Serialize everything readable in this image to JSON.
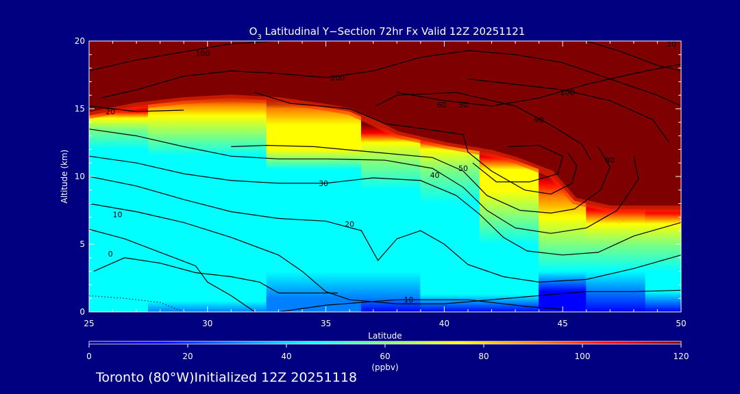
{
  "chart_data": {
    "type": "heatmap",
    "title_parts": {
      "species": "O",
      "subscript": "3",
      "rest": " Latitudinal Y−Section 72hr  Fx Valid 12Z 20251121"
    },
    "xlabel": "Latitude",
    "ylabel": "Altitude (km)",
    "xlim": [
      25,
      50
    ],
    "ylim": [
      0,
      20
    ],
    "x_ticks": [
      "25",
      "30",
      "35",
      "40",
      "45",
      "50"
    ],
    "y_ticks": [
      "0",
      "5",
      "10",
      "15",
      "20"
    ],
    "colorbar": {
      "label": "(ppbv)",
      "range": [
        0,
        120
      ],
      "ticks": [
        "0",
        "20",
        "40",
        "60",
        "80",
        "100",
        "120"
      ],
      "colormap": [
        "#00007f",
        "#0000ff",
        "#007fff",
        "#00ffff",
        "#7fff7f",
        "#ffff00",
        "#ff7f00",
        "#ff0000",
        "#7f0000"
      ]
    },
    "field_color": "#7f0000",
    "tropopause_km": [
      [
        25,
        14.5
      ],
      [
        27,
        15.2
      ],
      [
        29,
        15.6
      ],
      [
        31,
        15.8
      ],
      [
        33,
        15.6
      ],
      [
        35,
        15.1
      ],
      [
        36,
        14.8
      ],
      [
        37,
        14.0
      ],
      [
        38,
        13.1
      ],
      [
        40,
        12.3
      ],
      [
        42,
        11.7
      ],
      [
        43,
        11.2
      ],
      [
        44.5,
        10.2
      ],
      [
        45.5,
        8.2
      ],
      [
        47,
        7.6
      ],
      [
        50,
        7.6
      ]
    ],
    "field_profiles": [
      {
        "lat": 25,
        "levels": [
          [
            0,
            40
          ],
          [
            0.5,
            45
          ],
          [
            3,
            42
          ],
          [
            5,
            45
          ],
          [
            8,
            46
          ],
          [
            10,
            46
          ],
          [
            12,
            50
          ],
          [
            13.5,
            60
          ],
          [
            14.3,
            80
          ],
          [
            14.8,
            100
          ],
          [
            15.8,
            120
          ]
        ]
      },
      {
        "lat": 30,
        "levels": [
          [
            0,
            28
          ],
          [
            0.8,
            38
          ],
          [
            3,
            42
          ],
          [
            6,
            46
          ],
          [
            9,
            44
          ],
          [
            11.5,
            48
          ],
          [
            13,
            60
          ],
          [
            14.5,
            75
          ],
          [
            15.3,
            95
          ],
          [
            16,
            120
          ]
        ]
      },
      {
        "lat": 35,
        "levels": [
          [
            0,
            25
          ],
          [
            1,
            36
          ],
          [
            3,
            44
          ],
          [
            6,
            44
          ],
          [
            9,
            44
          ],
          [
            10.5,
            52
          ],
          [
            12,
            68
          ],
          [
            13.8,
            76
          ],
          [
            15,
            88
          ],
          [
            15.6,
            120
          ]
        ]
      },
      {
        "lat": 38,
        "levels": [
          [
            0,
            22
          ],
          [
            1,
            35
          ],
          [
            3,
            44
          ],
          [
            7,
            47
          ],
          [
            9,
            52
          ],
          [
            11,
            62
          ],
          [
            12.5,
            80
          ],
          [
            13.2,
            100
          ],
          [
            13.8,
            120
          ]
        ]
      },
      {
        "lat": 40,
        "levels": [
          [
            0,
            20
          ],
          [
            1.3,
            40
          ],
          [
            3,
            45
          ],
          [
            5,
            44
          ],
          [
            8,
            50
          ],
          [
            10.5,
            55
          ],
          [
            12,
            78
          ],
          [
            12.7,
            100
          ],
          [
            13.2,
            120
          ]
        ]
      },
      {
        "lat": 43,
        "levels": [
          [
            0,
            15
          ],
          [
            1.3,
            38
          ],
          [
            3,
            45
          ],
          [
            5,
            52
          ],
          [
            7,
            63
          ],
          [
            9,
            70
          ],
          [
            10.5,
            80
          ],
          [
            11.4,
            100
          ],
          [
            11.9,
            120
          ]
        ]
      },
      {
        "lat": 45,
        "levels": [
          [
            0,
            10
          ],
          [
            1.5,
            18
          ],
          [
            3,
            45
          ],
          [
            5,
            55
          ],
          [
            7,
            68
          ],
          [
            8.5,
            90
          ],
          [
            9.5,
            110
          ],
          [
            10.2,
            120
          ]
        ]
      },
      {
        "lat": 47,
        "levels": [
          [
            0,
            15
          ],
          [
            1.5,
            35
          ],
          [
            3,
            45
          ],
          [
            5,
            58
          ],
          [
            6.5,
            76
          ],
          [
            7.5,
            100
          ],
          [
            8.2,
            120
          ]
        ]
      },
      {
        "lat": 50,
        "levels": [
          [
            0,
            18
          ],
          [
            1.5,
            38
          ],
          [
            3,
            50
          ],
          [
            5,
            62
          ],
          [
            6.5,
            80
          ],
          [
            7.3,
            105
          ],
          [
            8,
            120
          ]
        ]
      }
    ],
    "contours": [
      {
        "label": "0",
        "label_at": [
          25.9,
          4.3
        ],
        "points": [
          [
            25,
            6.1
          ],
          [
            26.5,
            5.4
          ],
          [
            28,
            4.4
          ],
          [
            29.5,
            3.4
          ],
          [
            30,
            2.2
          ],
          [
            31,
            1.2
          ],
          [
            32,
            0
          ]
        ]
      },
      {
        "label": "10",
        "label_at": [
          26.2,
          7.2
        ],
        "points": [
          [
            25,
            8.0
          ],
          [
            27,
            7.4
          ],
          [
            29,
            6.6
          ],
          [
            31,
            5.5
          ],
          [
            33,
            4.2
          ],
          [
            34,
            3.0
          ],
          [
            35,
            1.5
          ],
          [
            36,
            0.9
          ],
          [
            38,
            0.6
          ],
          [
            40,
            0.6
          ],
          [
            42,
            0.9
          ],
          [
            44,
            1.2
          ],
          [
            46,
            1.5
          ],
          [
            48,
            1.5
          ],
          [
            50,
            1.6
          ]
        ]
      },
      {
        "label": "10",
        "label_at": [
          38.5,
          0.9
        ],
        "points": [
          [
            33,
            0
          ],
          [
            35,
            0.5
          ],
          [
            38,
            0.9
          ],
          [
            41,
            0.9
          ],
          [
            43.5,
            0.4
          ],
          [
            45,
            0.2
          ]
        ]
      },
      {
        "label": "20",
        "label_at": [
          36,
          6.5
        ],
        "points": [
          [
            25,
            10.0
          ],
          [
            27,
            9.3
          ],
          [
            29,
            8.3
          ],
          [
            31,
            7.4
          ],
          [
            33,
            6.9
          ],
          [
            35,
            6.7
          ],
          [
            36.5,
            6.0
          ],
          [
            37.2,
            3.8
          ],
          [
            38,
            5.4
          ],
          [
            39,
            6.0
          ],
          [
            40,
            5.0
          ],
          [
            41,
            3.5
          ],
          [
            42.5,
            2.6
          ],
          [
            44,
            2.2
          ],
          [
            46,
            2.4
          ],
          [
            48,
            3.2
          ],
          [
            50,
            4.2
          ]
        ]
      },
      {
        "label": "20",
        "label_at": [
          25.9,
          14.8
        ],
        "points": [
          [
            25,
            15.2
          ],
          [
            27,
            14.8
          ],
          [
            29,
            14.9
          ]
        ]
      },
      {
        "label": "30",
        "label_at": [
          34.9,
          9.5
        ],
        "points": [
          [
            25,
            11.5
          ],
          [
            27,
            11.0
          ],
          [
            29,
            10.2
          ],
          [
            31,
            9.7
          ],
          [
            33,
            9.5
          ],
          [
            35,
            9.5
          ],
          [
            37,
            9.9
          ],
          [
            39,
            9.7
          ],
          [
            40.5,
            8.6
          ],
          [
            41.5,
            7.2
          ],
          [
            42.5,
            5.5
          ],
          [
            43.5,
            4.5
          ],
          [
            45,
            4.2
          ],
          [
            46.5,
            4.4
          ],
          [
            48,
            5.6
          ],
          [
            50,
            6.6
          ]
        ]
      },
      {
        "label": "30",
        "label_at": [
          40.8,
          15.3
        ],
        "points": [
          [
            38,
            16.2
          ],
          [
            40,
            15.6
          ],
          [
            42,
            15.2
          ],
          [
            44,
            15.8
          ],
          [
            46,
            16.8
          ],
          [
            48,
            17.6
          ],
          [
            50,
            18.3
          ]
        ]
      },
      {
        "label": "40",
        "label_at": [
          39.6,
          10.1
        ],
        "points": [
          [
            25,
            13.5
          ],
          [
            27,
            13.0
          ],
          [
            29,
            12.2
          ],
          [
            31,
            11.5
          ],
          [
            33,
            11.3
          ],
          [
            35,
            11.3
          ],
          [
            37.5,
            11.2
          ],
          [
            39.5,
            10.6
          ],
          [
            40.8,
            9.2
          ],
          [
            41.8,
            7.5
          ],
          [
            43,
            6.2
          ],
          [
            44.5,
            5.8
          ],
          [
            46,
            6.2
          ],
          [
            47.3,
            7.5
          ],
          [
            48.2,
            9.8
          ],
          [
            48,
            11.5
          ]
        ]
      },
      {
        "label": "50",
        "label_at": [
          40.8,
          10.6
        ],
        "points": [
          [
            31,
            12.2
          ],
          [
            32.5,
            12.3
          ],
          [
            34.5,
            12.2
          ],
          [
            37,
            11.8
          ],
          [
            39.5,
            11.4
          ],
          [
            40.8,
            10.4
          ],
          [
            41.8,
            8.6
          ],
          [
            43.2,
            7.5
          ],
          [
            44.5,
            7.3
          ],
          [
            45.5,
            7.6
          ],
          [
            46.6,
            9.0
          ],
          [
            47,
            10.7
          ],
          [
            46.5,
            12.2
          ]
        ]
      },
      {
        "label": "60",
        "label_at": [
          39.9,
          15.3
        ],
        "points": [
          [
            32,
            16.2
          ],
          [
            33.5,
            15.4
          ],
          [
            36,
            15.0
          ],
          [
            37.5,
            13.9
          ],
          [
            39.2,
            13.5
          ],
          [
            40.8,
            13.1
          ],
          [
            41,
            11.8
          ],
          [
            42,
            10.4
          ],
          [
            43.4,
            9.0
          ],
          [
            44.5,
            8.7
          ],
          [
            45.4,
            9.5
          ],
          [
            45.6,
            10.8
          ],
          [
            45.2,
            11.8
          ]
        ]
      },
      {
        "label": "80",
        "label_at": [
          47,
          11.2
        ],
        "points": [
          [
            41.2,
            11.0
          ],
          [
            42.2,
            9.6
          ],
          [
            43.6,
            9.6
          ],
          [
            44.8,
            10.2
          ],
          [
            45,
            11.5
          ],
          [
            44,
            12.3
          ],
          [
            42.7,
            12.2
          ]
        ]
      },
      {
        "label": "90",
        "label_at": [
          44,
          14.2
        ],
        "points": [
          [
            37.1,
            15.2
          ],
          [
            38,
            16.0
          ],
          [
            40.5,
            16.2
          ],
          [
            43,
            15.2
          ],
          [
            44.5,
            13.8
          ],
          [
            45.8,
            12.4
          ],
          [
            46.2,
            11.2
          ]
        ]
      },
      {
        "label": "100",
        "label_at": [
          29.8,
          19.1
        ],
        "points": [
          [
            25,
            17.8
          ],
          [
            27,
            18.6
          ],
          [
            29,
            19.2
          ],
          [
            31,
            19.8
          ],
          [
            33,
            20.0
          ]
        ]
      },
      {
        "label": "200",
        "label_at": [
          35.5,
          17.3
        ],
        "points": [
          [
            25.5,
            15.8
          ],
          [
            27,
            16.4
          ],
          [
            29,
            17.4
          ],
          [
            31,
            17.8
          ],
          [
            33,
            17.6
          ],
          [
            35,
            17.3
          ],
          [
            37,
            17.8
          ],
          [
            39,
            18.8
          ],
          [
            41,
            19.3
          ],
          [
            43,
            19.0
          ],
          [
            45,
            18.4
          ],
          [
            47,
            17.2
          ],
          [
            49,
            16.0
          ],
          [
            50,
            15.2
          ]
        ]
      },
      {
        "label": "100",
        "label_at": [
          45.2,
          16.2
        ],
        "points": [
          [
            41,
            17.2
          ],
          [
            43,
            16.8
          ],
          [
            45,
            16.4
          ],
          [
            47,
            15.6
          ],
          [
            48.8,
            14.2
          ],
          [
            49.5,
            12.5
          ]
        ]
      },
      {
        "label": "10",
        "label_at": [
          49.6,
          19.8
        ],
        "points": [
          [
            46,
            20.0
          ],
          [
            47.5,
            19.2
          ],
          [
            49,
            18.2
          ],
          [
            50,
            17.8
          ]
        ]
      },
      {
        "label": "",
        "label_at": [
          26,
          1
        ],
        "points": [
          [
            25.2,
            3.0
          ],
          [
            26.5,
            4.0
          ],
          [
            28,
            3.6
          ],
          [
            29.5,
            2.9
          ],
          [
            31,
            2.6
          ],
          [
            32.2,
            2.2
          ],
          [
            33,
            1.4
          ],
          [
            35.5,
            1.4
          ]
        ]
      }
    ]
  },
  "footer": {
    "city": "Toronto",
    "longitude": "(80°W)",
    "init_text": "Initialized 12Z 20251118"
  }
}
